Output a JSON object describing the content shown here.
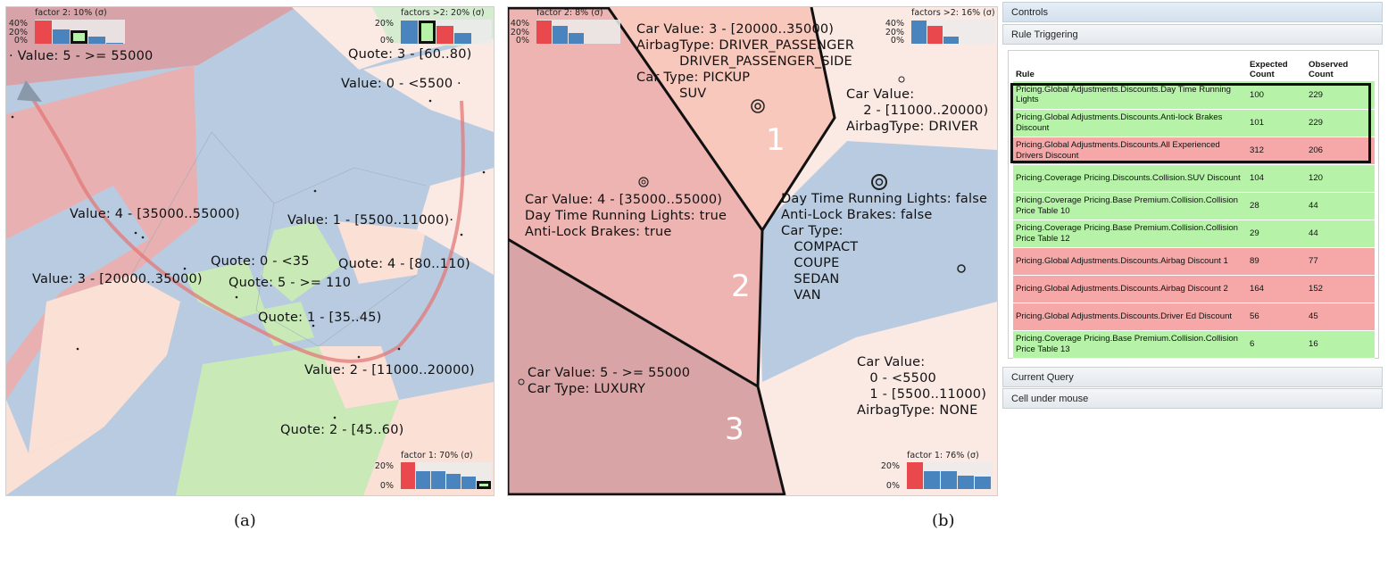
{
  "panel_a": {
    "labels": {
      "value5": "· Value: 5 - >= 55000",
      "quote3": "Quote: 3 - [60..80)",
      "value0": "Value: 0 - <5500 ·",
      "value4": "Value: 4 - [35000..55000)",
      "value1": "Value: 1 - [5500..11000)·",
      "quote0": "Quote: 0 - <35",
      "quote4": "Quote: 4 - [80..110)",
      "value3": "Value: 3 - [20000..35000)",
      "quote5": "Quote: 5 - >= 110",
      "quote1": "Quote: 1 - [35..45)",
      "value2": "Value: 2 - [11000..20000)",
      "quote2": "Quote: 2 - [45..60)"
    },
    "hist_tl": {
      "caption": "factor 2: 10% (σ)",
      "ticks": [
        "40%",
        "20%",
        "0%"
      ],
      "bars": [
        {
          "v": 0.95,
          "c": "#e9484c"
        },
        {
          "v": 0.6,
          "c": "#4a84be"
        },
        {
          "v": 0.55,
          "c": "#b6f3a8",
          "hl": true
        },
        {
          "v": 0.3,
          "c": "#4a84be"
        },
        {
          "v": 0.05,
          "c": "#4a84be"
        }
      ]
    },
    "hist_tr": {
      "caption": "factors >2: 20% (σ)",
      "ticks": [
        "20%",
        "0%"
      ],
      "bars": [
        {
          "v": 0.95,
          "c": "#4a84be"
        },
        {
          "v": 0.95,
          "c": "#b6f3a8",
          "hl": true
        },
        {
          "v": 0.75,
          "c": "#e9484c"
        },
        {
          "v": 0.45,
          "c": "#4a84be"
        }
      ]
    },
    "hist_br": {
      "caption": "factor 1: 70% (σ)",
      "ticks": [
        "20%",
        "0%"
      ],
      "bars": [
        {
          "v": 1.0,
          "c": "#e9484c"
        },
        {
          "v": 0.65,
          "c": "#4a84be"
        },
        {
          "v": 0.65,
          "c": "#4a84be"
        },
        {
          "v": 0.55,
          "c": "#4a84be"
        },
        {
          "v": 0.45,
          "c": "#4a84be"
        },
        {
          "v": 0.3,
          "c": "#b6f3a8",
          "hl": true
        }
      ]
    }
  },
  "panel_b": {
    "labels": {
      "zone_top": "Car Value: 3 - [20000..35000)\nAirbagType: DRIVER_PASSENGER\n          DRIVER_PASSENGER_SIDE\nCar Type: PICKUP\n          SUV",
      "zone_right": "Car Value:\n    2 - [11000..20000)\nAirbagType: DRIVER",
      "zone_left": "Car Value: 4 - [35000..55000)\nDay Time Running Lights: true\nAnti-Lock Brakes: true",
      "zone_mid": "Day Time Running Lights: false\nAnti-Lock Brakes: false\nCar Type:\n   COMPACT\n   COUPE\n   SEDAN\n   VAN",
      "zone_bottom": "Car Value: 5 - >= 55000\nCar Type: LUXURY",
      "zone_br": "Car Value:\n   0 - <5500\n   1 - [5500..11000)\nAirbagType: NONE",
      "num1": "1",
      "num2": "2",
      "num3": "3"
    },
    "hist_tl": {
      "caption": "factor 2: 8% (σ)",
      "ticks": [
        "40%",
        "20%",
        "0%"
      ],
      "bars": [
        {
          "v": 0.95,
          "c": "#e9484c"
        },
        {
          "v": 0.75,
          "c": "#4a84be"
        },
        {
          "v": 0.45,
          "c": "#4a84be"
        }
      ]
    },
    "hist_tr": {
      "caption": "factors >2: 16% (σ)",
      "ticks": [
        "40%",
        "20%",
        "0%"
      ],
      "bars": [
        {
          "v": 0.95,
          "c": "#4a84be"
        },
        {
          "v": 0.75,
          "c": "#e9484c"
        },
        {
          "v": 0.3,
          "c": "#4a84be"
        }
      ]
    },
    "hist_br": {
      "caption": "factor 1: 76% (σ)",
      "ticks": [
        "20%",
        "0%"
      ],
      "bars": [
        {
          "v": 1.0,
          "c": "#e9484c"
        },
        {
          "v": 0.65,
          "c": "#4a84be"
        },
        {
          "v": 0.65,
          "c": "#4a84be"
        },
        {
          "v": 0.5,
          "c": "#4a84be"
        },
        {
          "v": 0.45,
          "c": "#4a84be"
        }
      ]
    }
  },
  "captions": {
    "a": "(a)",
    "b": "(b)"
  },
  "controls": {
    "controls_header": "Controls",
    "rule_triggering_header": "Rule Triggering",
    "table_headers": {
      "rule": "Rule",
      "expected": "Expected Count",
      "observed": "Observed Count"
    },
    "rows": [
      {
        "rule": "Pricing.Global Adjustments.Discounts.Day Time Running Lights",
        "expected": "100",
        "observed": "229",
        "status": "green"
      },
      {
        "rule": "Pricing.Global Adjustments.Discounts.Anti-lock Brakes Discount",
        "expected": "101",
        "observed": "229",
        "status": "green"
      },
      {
        "rule": "Pricing.Global Adjustments.Discounts.All Experienced Drivers Discount",
        "expected": "312",
        "observed": "206",
        "status": "red"
      },
      {
        "rule": "Pricing.Coverage Pricing.Discounts.Collision.SUV Discount",
        "expected": "104",
        "observed": "120",
        "status": "green"
      },
      {
        "rule": "Pricing.Coverage Pricing.Base Premium.Collision.Collision Price Table 10",
        "expected": "28",
        "observed": "44",
        "status": "green"
      },
      {
        "rule": "Pricing.Coverage Pricing.Base Premium.Collision.Collision Price Table 12",
        "expected": "29",
        "observed": "44",
        "status": "green"
      },
      {
        "rule": "Pricing.Global Adjustments.Discounts.Airbag Discount 1",
        "expected": "89",
        "observed": "77",
        "status": "red"
      },
      {
        "rule": "Pricing.Global Adjustments.Discounts.Airbag Discount 2",
        "expected": "164",
        "observed": "152",
        "status": "red"
      },
      {
        "rule": "Pricing.Global Adjustments.Discounts.Driver Ed Discount",
        "expected": "56",
        "observed": "45",
        "status": "red"
      },
      {
        "rule": "Pricing.Coverage Pricing.Base Premium.Collision.Collision Price Table 13",
        "expected": "6",
        "observed": "16",
        "status": "green"
      }
    ],
    "current_query_header": "Current Query",
    "cell_under_mouse_header": "Cell under mouse"
  }
}
